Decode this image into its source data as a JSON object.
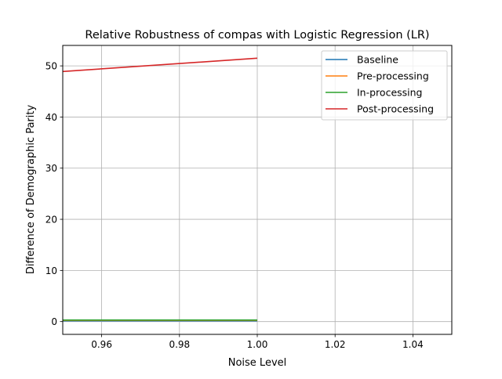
{
  "chart_data": {
    "type": "line",
    "title": "Relative Robustness of compas with Logistic Regression (LR)",
    "xlabel": "Noise Level",
    "ylabel": "Difference of Demographic Parity",
    "xlim": [
      0.95,
      1.05
    ],
    "ylim": [
      -2.5,
      54
    ],
    "xticks": [
      0.96,
      0.98,
      1.0,
      1.02,
      1.04
    ],
    "xtick_labels": [
      "0.96",
      "0.98",
      "1.00",
      "1.02",
      "1.04"
    ],
    "yticks": [
      0,
      10,
      20,
      30,
      40,
      50
    ],
    "ytick_labels": [
      "0",
      "10",
      "20",
      "30",
      "40",
      "50"
    ],
    "grid": true,
    "legend_position": "top-right",
    "series": [
      {
        "name": "Baseline",
        "color": "#1f77b4",
        "x": [
          0.95,
          1.0
        ],
        "y": [
          0.15,
          0.15
        ]
      },
      {
        "name": "Pre-processing",
        "color": "#ff7f0e",
        "x": [
          0.95,
          1.0
        ],
        "y": [
          0.25,
          0.25
        ]
      },
      {
        "name": "In-processing",
        "color": "#2ca02c",
        "x": [
          0.95,
          1.0
        ],
        "y": [
          0.3,
          0.3
        ]
      },
      {
        "name": "Post-processing",
        "color": "#d62728",
        "x": [
          0.95,
          1.0
        ],
        "y": [
          48.9,
          51.5
        ]
      }
    ]
  }
}
